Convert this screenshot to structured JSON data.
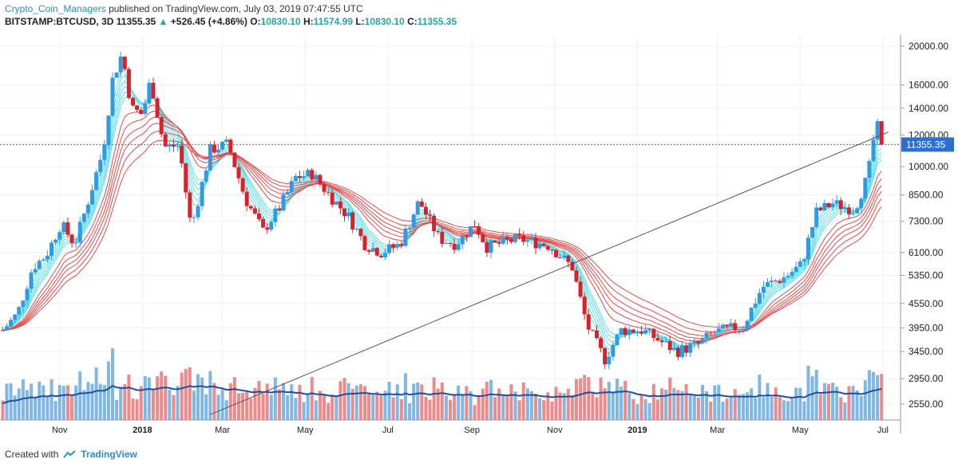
{
  "header": {
    "author": "Crypto_Coin_Managers",
    "published_text": "published on TradingView.com, July 03, 2019 07:47:55 UTC",
    "symbol": "BITSTAMP:BTCUSD, 3D",
    "last": "11355.35",
    "change_arrow": "▲",
    "change": "+526.45 (+4.86%)",
    "open_key": "O:",
    "open": "10830.10",
    "high_key": "H:",
    "high": "11574.99",
    "low_key": "L:",
    "low": "10830.10",
    "close_key": "C:",
    "close": "11355.35"
  },
  "footer": {
    "created_with": "Created with",
    "brand": "TradingView",
    "logo_icon": "tradingview-cloud-icon"
  },
  "colors": {
    "up": "#2f9be0",
    "down": "#d8222a",
    "vol_up": "#7fb8e6",
    "vol_down": "#ee8a8a",
    "ema_fast": "#5fe0e8",
    "ema_slow": "#e54a4a",
    "vol_ma": "#1f4f9c",
    "price_line": "#2a6fd6",
    "price_tag": "#2a6fd6"
  },
  "chart_data": {
    "type": "candlestick",
    "symbol": "BITSTAMP:BTCUSD",
    "interval": "3D",
    "y_scale": "log",
    "y_ticks": [
      2550,
      2950,
      3450,
      3950,
      4550,
      5350,
      6100,
      7300,
      8500,
      10000,
      12000,
      14000,
      16000,
      20000
    ],
    "y_tick_labels": [
      "2550.00",
      "2950.00",
      "3450.00",
      "3950.00",
      "4550.00",
      "5350.00",
      "6100.00",
      "7300.00",
      "8500.00",
      "10000.00",
      "12000.00",
      "14000.00",
      "16000.00",
      "20000.00"
    ],
    "x_tick_labels": [
      "Nov",
      "2018",
      "Mar",
      "May",
      "Jul",
      "Sep",
      "Nov",
      "2019",
      "Mar",
      "May",
      "Jul"
    ],
    "last_price_label": "11355.35",
    "anchor_points": [
      [
        "2017-09-20",
        3900
      ],
      [
        "2017-10-01",
        4300
      ],
      [
        "2017-10-12",
        5600
      ],
      [
        "2017-10-22",
        6000
      ],
      [
        "2017-11-02",
        7200
      ],
      [
        "2017-11-12",
        6400
      ],
      [
        "2017-11-22",
        8200
      ],
      [
        "2017-12-03",
        11000
      ],
      [
        "2017-12-10",
        16500
      ],
      [
        "2017-12-17",
        19200
      ],
      [
        "2017-12-24",
        14000
      ],
      [
        "2018-01-01",
        13500
      ],
      [
        "2018-01-07",
        16500
      ],
      [
        "2018-01-17",
        11200
      ],
      [
        "2018-01-28",
        11300
      ],
      [
        "2018-02-06",
        7000
      ],
      [
        "2018-02-20",
        11000
      ],
      [
        "2018-03-05",
        11400
      ],
      [
        "2018-03-18",
        8300
      ],
      [
        "2018-03-31",
        6900
      ],
      [
        "2018-04-12",
        7900
      ],
      [
        "2018-04-24",
        9400
      ],
      [
        "2018-05-06",
        9600
      ],
      [
        "2018-05-20",
        8400
      ],
      [
        "2018-06-02",
        7500
      ],
      [
        "2018-06-14",
        6400
      ],
      [
        "2018-06-26",
        6100
      ],
      [
        "2018-07-10",
        6400
      ],
      [
        "2018-07-24",
        8200
      ],
      [
        "2018-08-08",
        6600
      ],
      [
        "2018-08-20",
        6400
      ],
      [
        "2018-09-03",
        7200
      ],
      [
        "2018-09-12",
        6300
      ],
      [
        "2018-10-05",
        6600
      ],
      [
        "2018-10-28",
        6350
      ],
      [
        "2018-11-14",
        5600
      ],
      [
        "2018-11-25",
        4000
      ],
      [
        "2018-12-08",
        3300
      ],
      [
        "2018-12-20",
        3900
      ],
      [
        "2019-01-05",
        3900
      ],
      [
        "2019-01-30",
        3450
      ],
      [
        "2019-02-15",
        3600
      ],
      [
        "2019-02-26",
        3850
      ],
      [
        "2019-03-20",
        4000
      ],
      [
        "2019-04-03",
        5000
      ],
      [
        "2019-04-20",
        5300
      ],
      [
        "2019-05-02",
        5700
      ],
      [
        "2019-05-13",
        7700
      ],
      [
        "2019-05-25",
        8100
      ],
      [
        "2019-06-10",
        7800
      ],
      [
        "2019-06-20",
        9500
      ],
      [
        "2019-06-26",
        12900
      ],
      [
        "2019-06-29",
        11900
      ],
      [
        "2019-07-02",
        11355.35
      ]
    ],
    "indicators": [
      "EMA ribbon (fast, cyan)",
      "EMA ribbon (slow, red)",
      "Volume with moving average"
    ],
    "trendline": [
      [
        "2018-02-20",
        2400
      ],
      [
        "2019-07-05",
        12200
      ]
    ]
  }
}
